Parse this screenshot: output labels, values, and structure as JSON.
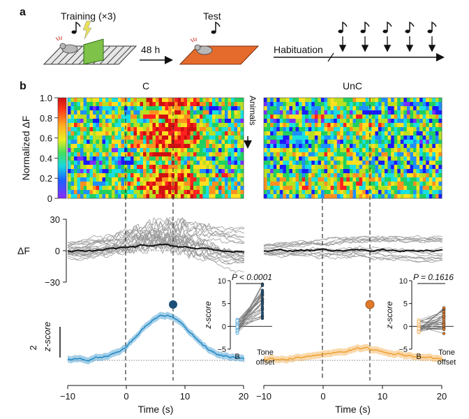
{
  "panel_a": {
    "letter": "a",
    "training_label": "Training (×3)",
    "interval_label": "48 h",
    "test_label": "Test",
    "habituation_label": "Habituation"
  },
  "panel_b": {
    "letter": "b",
    "groups": [
      "C",
      "UnC"
    ],
    "heatmap": {
      "ylabel": "Normalized ΔF",
      "colorbar_ticks": [
        "1.0",
        "0.8",
        "0.6",
        "0.4",
        "0.2",
        "0"
      ],
      "animals_label": "Animals",
      "colors": [
        "#7b2fff",
        "#1a1aff",
        "#1e90ff",
        "#18e0e0",
        "#20d060",
        "#b8e020",
        "#ffe020",
        "#ff9020",
        "#ff2020",
        "#d01010"
      ]
    },
    "delta_f": {
      "ylabel": "ΔF",
      "yticks": [
        "30",
        "0",
        "−30"
      ],
      "individual_color": "#9a9a9a",
      "mean_color": "#111111"
    },
    "zscore": {
      "scalebar_value": "2",
      "scalebar_unit": "z-score",
      "C_color": "#1f88c5",
      "UnC_color": "#f0a030"
    },
    "time_axis": {
      "label": "Time (s)",
      "ticks": [
        "−10",
        "0",
        "10",
        "20"
      ]
    },
    "insets": [
      {
        "group": "C",
        "p_value": "P < 0.0001",
        "yticks": [
          "10",
          "5",
          "0",
          "−5"
        ],
        "ylabel": "z-score",
        "xlabel_b": "B",
        "xlabel_tone_1": "Tone",
        "xlabel_tone_2": "offset",
        "marker_color": "#1b4f78",
        "b_color": "#69b3e0"
      },
      {
        "group": "UnC",
        "p_value": "P = 0.1616",
        "yticks": [
          "10",
          "5",
          "0",
          "−5"
        ],
        "ylabel": "z-score",
        "xlabel_b": "B",
        "xlabel_tone_1": "Tone",
        "xlabel_tone_2": "offset",
        "marker_color": "#e07a2a",
        "b_color": "#f2b56a"
      }
    ]
  }
}
